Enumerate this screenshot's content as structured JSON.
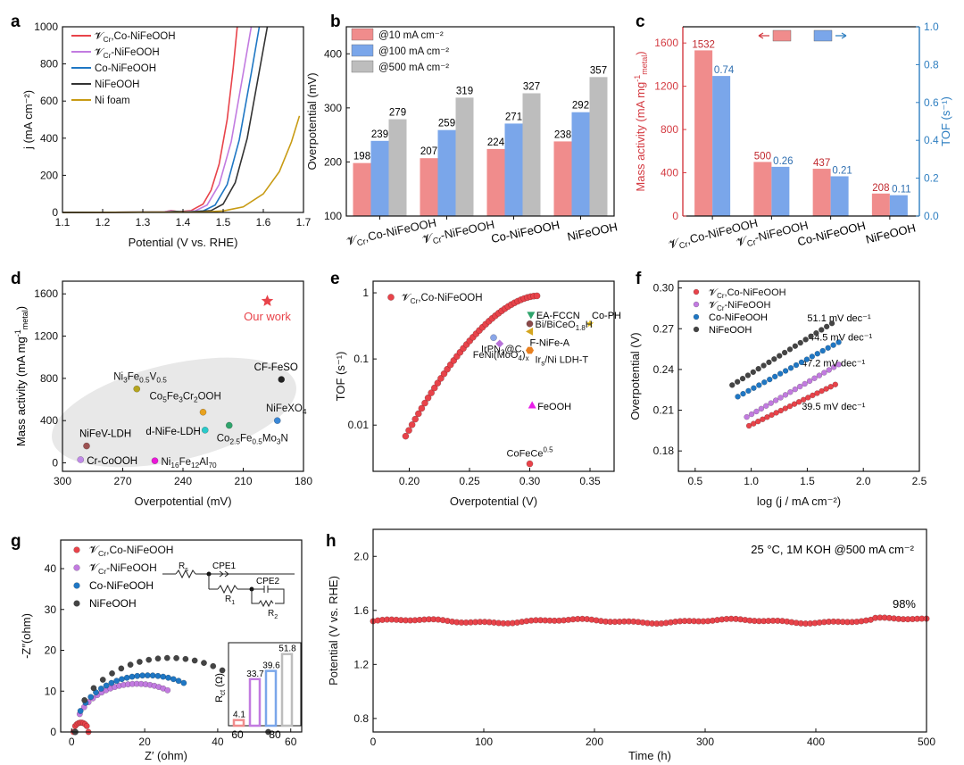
{
  "colors": {
    "red": "#e8434a",
    "pink": "#f08c8c",
    "purple": "#c27be0",
    "blue": "#1f77c4",
    "lightblue": "#7aa6ea",
    "black": "#333333",
    "gold": "#c89b14",
    "grey": "#bdbdbd",
    "magenta": "#e81fe8",
    "tofblue": "#2f7fc1"
  },
  "labels": {
    "a": "a",
    "b": "b",
    "c": "c",
    "d": "d",
    "e": "e",
    "f": "f",
    "g": "g",
    "h": "h",
    "ser_cr": "𝓥Cr,Co-NiFeOOH",
    "ser_ni": "𝓥Cr-NiFeOOH"
  },
  "chart_data": [
    {
      "id": "a",
      "type": "line",
      "xlabel": "Potential (V vs. RHE)",
      "ylabel": "j (mA cm⁻²)",
      "xlim": [
        1.1,
        1.7
      ],
      "ylim": [
        0,
        1000
      ],
      "xticks": [
        "1.1",
        "1.2",
        "1.3",
        "1.4",
        "1.5",
        "1.6",
        "1.7"
      ],
      "yticks": [
        "0",
        "200",
        "400",
        "600",
        "800",
        "1000"
      ],
      "legend": "top-left",
      "series": [
        {
          "name": "VCr,Co-NiFeOOH",
          "color": "#e8434a",
          "points": [
            [
              1.1,
              0
            ],
            [
              1.35,
              2
            ],
            [
              1.37,
              10
            ],
            [
              1.39,
              4
            ],
            [
              1.42,
              10
            ],
            [
              1.45,
              45
            ],
            [
              1.47,
              120
            ],
            [
              1.49,
              260
            ],
            [
              1.51,
              500
            ],
            [
              1.525,
              780
            ],
            [
              1.535,
              1000
            ]
          ]
        },
        {
          "name": "VCr-NiFeOOH",
          "color": "#c27be0",
          "points": [
            [
              1.1,
              0
            ],
            [
              1.35,
              2
            ],
            [
              1.37,
              8
            ],
            [
              1.39,
              3
            ],
            [
              1.43,
              8
            ],
            [
              1.46,
              40
            ],
            [
              1.49,
              150
            ],
            [
              1.52,
              380
            ],
            [
              1.55,
              750
            ],
            [
              1.57,
              1000
            ]
          ]
        },
        {
          "name": "Co-NiFeOOH",
          "color": "#1f77c4",
          "points": [
            [
              1.1,
              0
            ],
            [
              1.36,
              2
            ],
            [
              1.38,
              6
            ],
            [
              1.41,
              3
            ],
            [
              1.45,
              8
            ],
            [
              1.48,
              40
            ],
            [
              1.51,
              150
            ],
            [
              1.54,
              390
            ],
            [
              1.57,
              750
            ],
            [
              1.59,
              1000
            ]
          ]
        },
        {
          "name": "NiFeOOH",
          "color": "#333333",
          "points": [
            [
              1.1,
              0
            ],
            [
              1.36,
              2
            ],
            [
              1.38,
              5
            ],
            [
              1.42,
              3
            ],
            [
              1.47,
              10
            ],
            [
              1.5,
              45
            ],
            [
              1.53,
              160
            ],
            [
              1.56,
              400
            ],
            [
              1.59,
              760
            ],
            [
              1.61,
              1000
            ]
          ]
        },
        {
          "name": "Ni foam",
          "color": "#c89b14",
          "points": [
            [
              1.1,
              0
            ],
            [
              1.45,
              2
            ],
            [
              1.5,
              8
            ],
            [
              1.55,
              30
            ],
            [
              1.6,
              100
            ],
            [
              1.64,
              220
            ],
            [
              1.67,
              380
            ],
            [
              1.69,
              520
            ]
          ]
        }
      ]
    },
    {
      "id": "b",
      "type": "bar",
      "ylabel": "Overpotential (mV)",
      "ylim": [
        100,
        450
      ],
      "yticks": [
        "100",
        "200",
        "300",
        "400"
      ],
      "categories": [
        "VCr,Co-NiFeOOH",
        "VCr-NiFeOOH",
        "Co-NiFeOOH",
        "NiFeOOH"
      ],
      "legend": "top-left",
      "series": [
        {
          "name": "@10 mA cm⁻²",
          "color": "#f08c8c",
          "values": [
            198,
            207,
            224,
            238
          ]
        },
        {
          "name": "@100 mA cm⁻²",
          "color": "#7aa6ea",
          "values": [
            239,
            259,
            271,
            292
          ]
        },
        {
          "name": "@500 mA cm⁻²",
          "color": "#bdbdbd",
          "values": [
            279,
            319,
            327,
            357
          ]
        }
      ]
    },
    {
      "id": "c",
      "type": "bar",
      "ylabel": "Mass activity (mA mg⁻¹metal)",
      "y2label": "TOF (s⁻¹)",
      "ylim": [
        0,
        1750
      ],
      "y2lim": [
        0,
        1.0
      ],
      "yticks": [
        "0",
        "400",
        "800",
        "1200",
        "1600"
      ],
      "y2ticks": [
        "0.0",
        "0.2",
        "0.4",
        "0.6",
        "0.8",
        "1.0"
      ],
      "categories": [
        "VCr,Co-NiFeOOH",
        "VCr-NiFeOOH",
        "Co-NiFeOOH",
        "NiFeOOH"
      ],
      "series": [
        {
          "name": "Mass activity",
          "color": "#f08c8c",
          "values": [
            1532,
            500,
            437,
            208
          ],
          "labels": [
            "1532",
            "500",
            "437",
            "208"
          ]
        },
        {
          "name": "TOF",
          "color": "#7aa6ea",
          "values": [
            0.74,
            0.26,
            0.21,
            0.11
          ],
          "labels": [
            "0.74",
            "0.26",
            "0.21",
            "0.11"
          ]
        }
      ]
    },
    {
      "id": "d",
      "type": "scatter",
      "xlabel": "Overpotential (mV)",
      "ylabel": "Mass activity (mA mg⁻¹metal)",
      "xlim": [
        300,
        180
      ],
      "ylim": [
        -80,
        1720
      ],
      "xticks": [
        "300",
        "270",
        "240",
        "210",
        "180"
      ],
      "yticks": [
        "0",
        "400",
        "800",
        "1200",
        "1600"
      ],
      "points": [
        {
          "label": "Our work",
          "x": 198,
          "y": 1532,
          "color": "#e8434a",
          "marker": "star"
        },
        {
          "label": "CF-FeSO",
          "x": 191,
          "y": 790,
          "color": "#222222"
        },
        {
          "label": "Ni3Fe0.5V0.5",
          "x": 263,
          "y": 700,
          "color": "#b5a51f"
        },
        {
          "label": "Co5Fe3Cr2OOH",
          "x": 230,
          "y": 480,
          "color": "#e8a21f"
        },
        {
          "label": "NiFeXO4",
          "x": 193,
          "y": 400,
          "color": "#3a87d6"
        },
        {
          "label": "d-NiFe-LDH",
          "x": 229,
          "y": 310,
          "color": "#2ac9c9"
        },
        {
          "label": "Co2.5Fe0.5Mo3N",
          "x": 217,
          "y": 355,
          "color": "#2fa46c"
        },
        {
          "label": "NiFeV-LDH",
          "x": 288,
          "y": 160,
          "color": "#9c5252"
        },
        {
          "label": "Cr-CoOOH",
          "x": 291,
          "y": 30,
          "color": "#c08ae8"
        },
        {
          "label": "Ni16Fe12Al70",
          "x": 254,
          "y": 20,
          "color": "#ea18d8"
        }
      ]
    },
    {
      "id": "e",
      "type": "scatter",
      "xlabel": "Overpotential (V)",
      "ylabel": "TOF (s⁻¹)",
      "yscale": "log",
      "xlim": [
        0.17,
        0.37
      ],
      "ylim": [
        0.002,
        1.5
      ],
      "xticks": [
        "0.20",
        "0.25",
        "0.30",
        "0.35"
      ],
      "yticks": [
        "0.01",
        "0.1",
        "1"
      ],
      "series_name": "VCr,Co-NiFeOOH",
      "curve": {
        "x0": 0.197,
        "x1": 0.306,
        "y0": 0.0068,
        "y1": 0.9
      },
      "points": [
        {
          "label": "EA-FCCN",
          "x": 0.301,
          "y": 0.46,
          "color": "#2fa46c",
          "marker": "tri-down"
        },
        {
          "label": "Co-PH",
          "x": 0.35,
          "y": 0.34,
          "color": "#e8c21f",
          "marker": "star"
        },
        {
          "label": "Bi/BiCeO1.8H",
          "x": 0.3,
          "y": 0.34,
          "color": "#8b4a4a"
        },
        {
          "label": "F-NiFe-A",
          "x": 0.3,
          "y": 0.26,
          "color": "#d4a51f",
          "marker": "tri-left"
        },
        {
          "label": "IrPN3@C",
          "x": 0.27,
          "y": 0.21,
          "color": "#8aa6e8"
        },
        {
          "label": "FeNi(MoO4)x",
          "x": 0.275,
          "y": 0.17,
          "color": "#b772d9",
          "marker": "diamond"
        },
        {
          "label": "Irs/Ni LDH-T",
          "x": 0.3,
          "y": 0.135,
          "color": "#e8801f",
          "marker": "hex"
        },
        {
          "label": "FeOOH",
          "x": 0.302,
          "y": 0.02,
          "color": "#e81fe8",
          "marker": "tri-up"
        },
        {
          "label": "CoFeCe0.5",
          "x": 0.3,
          "y": 0.0026,
          "color": "#e8434a"
        }
      ]
    },
    {
      "id": "f",
      "type": "scatter",
      "xlabel": "log (j / mA cm⁻²)",
      "ylabel": "Overpotential (V)",
      "xlim": [
        0.35,
        2.5
      ],
      "ylim": [
        0.165,
        0.305
      ],
      "xticks": [
        "0.5",
        "1.0",
        "1.5",
        "2.0",
        "2.5"
      ],
      "yticks": [
        "0.18",
        "0.21",
        "0.24",
        "0.27",
        "0.30"
      ],
      "legend": "top-left",
      "series": [
        {
          "name": "VCr,Co-NiFeOOH",
          "color": "#e8434a",
          "x0": 0.98,
          "x1": 1.75,
          "y0": 0.1985,
          "slope_label": "39.5 mV dec⁻¹",
          "slope": 0.0395
        },
        {
          "name": "VCr-NiFeOOH",
          "color": "#c27be0",
          "x0": 0.96,
          "x1": 1.78,
          "y0": 0.205,
          "slope_label": "47.2 mV dec⁻¹",
          "slope": 0.0472
        },
        {
          "name": "Co-NiFeOOH",
          "color": "#1f77c4",
          "x0": 0.88,
          "x1": 1.78,
          "y0": 0.22,
          "slope_label": "44.5 mV dec⁻¹",
          "slope": 0.0445
        },
        {
          "name": "NiFeOOH",
          "color": "#444444",
          "x0": 0.83,
          "x1": 1.72,
          "y0": 0.2285,
          "slope_label": "51.1 mV dec⁻¹",
          "slope": 0.0511
        }
      ]
    },
    {
      "id": "g",
      "type": "scatter",
      "xlabel": "Z′ (ohm)",
      "ylabel": "-Z″(ohm)",
      "xlim": [
        -3,
        63
      ],
      "ylim": [
        0,
        47
      ],
      "xticks": [
        "0",
        "20",
        "40",
        "60"
      ],
      "yticks": [
        "0",
        "10",
        "20",
        "30",
        "40"
      ],
      "legend": "top-left",
      "circuit": {
        "r": "R",
        "rs": "s",
        "cpe1": "CPE1",
        "r1": "R1",
        "cpe2": "CPE2",
        "r2": "R2"
      },
      "series": [
        {
          "name": "VCr,Co-NiFeOOH",
          "color": "#e8434a",
          "r0": 0.5,
          "rct": 4.1
        },
        {
          "name": "VCr-NiFeOOH",
          "color": "#c27be0",
          "r0": 1.0,
          "rct": 33.7
        },
        {
          "name": "Co-NiFeOOH",
          "color": "#1f77c4",
          "r0": 1.0,
          "rct": 39.6
        },
        {
          "name": "NiFeOOH",
          "color": "#444444",
          "r0": 1.0,
          "rct": 51.8
        }
      ],
      "inset": {
        "type": "bar",
        "ylabel": "Rct (Ω)",
        "ylim": [
          0,
          60
        ],
        "xticks": [
          "60",
          "80"
        ],
        "values": [
          4.1,
          33.7,
          39.6,
          51.8
        ],
        "labels": [
          "4.1",
          "33.7",
          "39.6",
          "51.8"
        ],
        "colors": [
          "#f08c8c",
          "#c27be0",
          "#7aa6ea",
          "#bdbdbd"
        ]
      }
    },
    {
      "id": "h",
      "type": "line",
      "xlabel": "Time (h)",
      "ylabel": "Potential (V vs. RHE)",
      "xlim": [
        0,
        500
      ],
      "ylim": [
        0.7,
        2.2
      ],
      "xticks": [
        "0",
        "100",
        "200",
        "300",
        "400",
        "500"
      ],
      "yticks": [
        "0.8",
        "1.2",
        "1.6",
        "2.0"
      ],
      "annotation": "25 °C, 1M KOH @500 mA cm⁻²",
      "retention": "98%",
      "series": [
        {
          "name": "VCr,Co-NiFeOOH",
          "color": "#e8434a",
          "base": 1.52
        }
      ]
    }
  ]
}
